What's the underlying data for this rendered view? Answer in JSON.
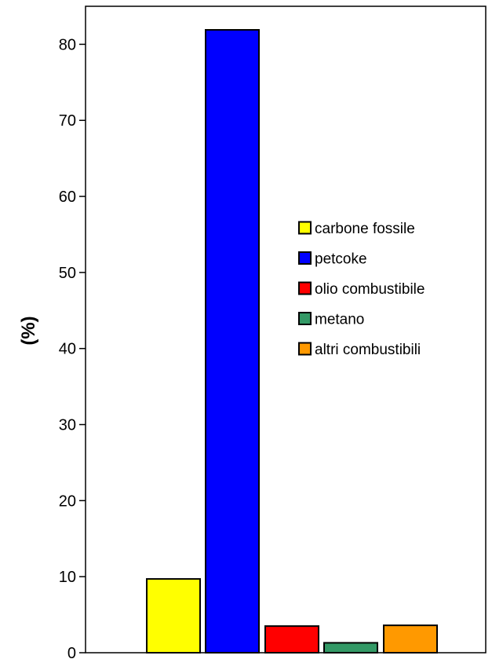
{
  "chart_data": {
    "type": "bar",
    "title": "",
    "xlabel": "",
    "ylabel": "(%)",
    "ylim": [
      0,
      85
    ],
    "yticks": [
      0,
      10,
      20,
      30,
      40,
      50,
      60,
      70,
      80
    ],
    "grid": false,
    "legend_position": "right",
    "categories": [
      "carbone fossile",
      "petcoke",
      "olio combustibile",
      "metano",
      "altri combustibili"
    ],
    "values": [
      9.7,
      81.9,
      3.5,
      1.3,
      3.6
    ],
    "colors": [
      "#FFFF00",
      "#0000FF",
      "#FF0000",
      "#339966",
      "#FF9900"
    ]
  }
}
